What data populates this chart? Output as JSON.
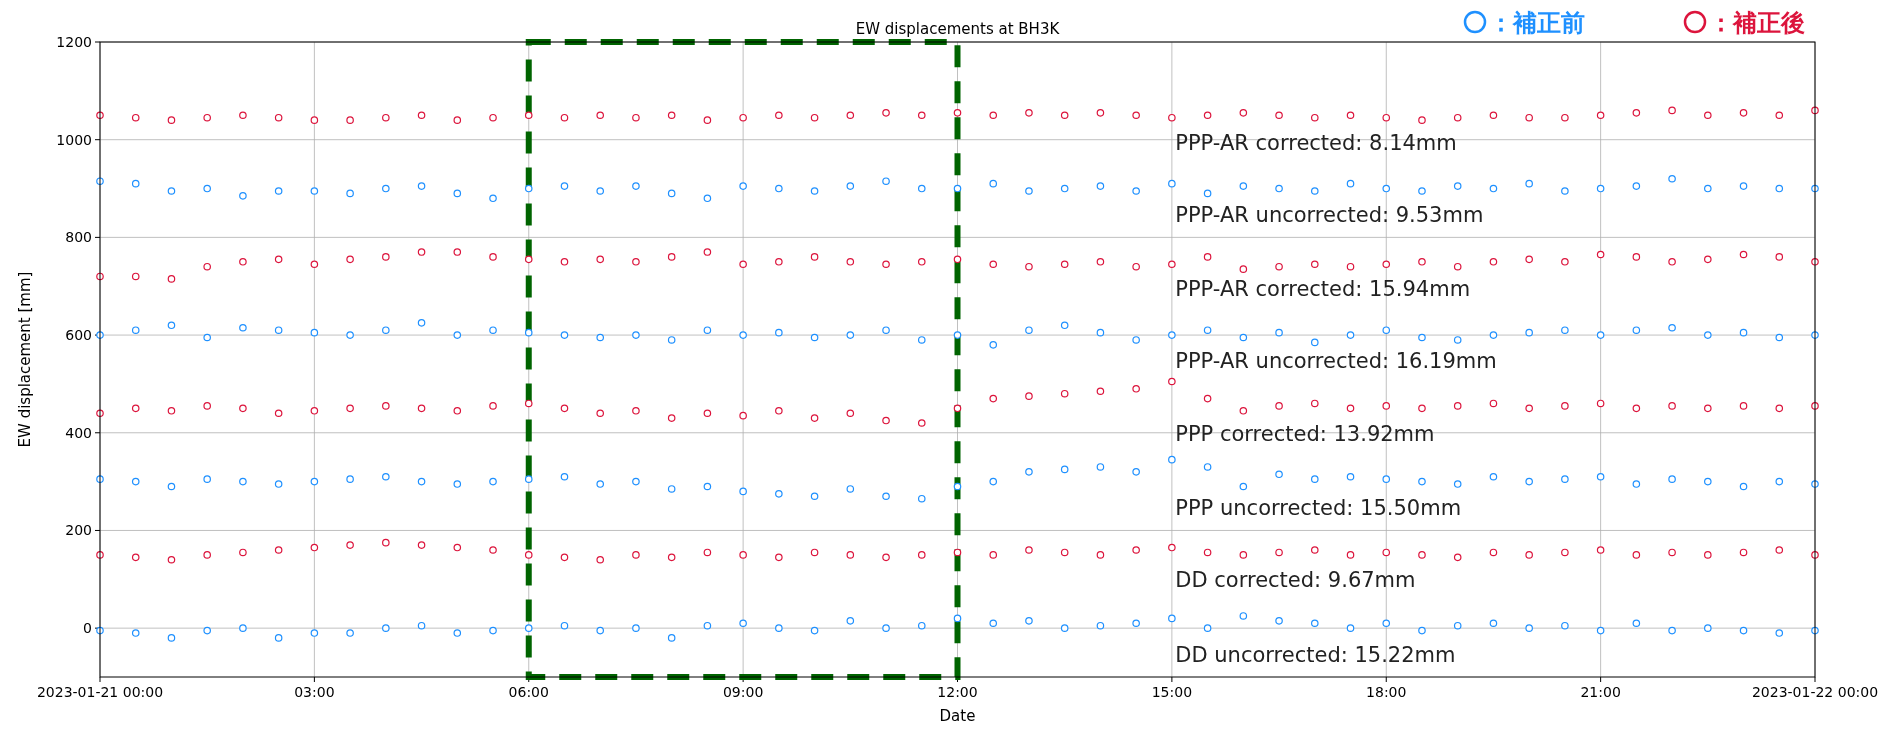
{
  "chart_data": {
    "type": "scatter",
    "title": "EW displacements at BH3K",
    "xlabel": "Date",
    "ylabel": "EW displacement [mm]",
    "marker": "circle",
    "grid": true,
    "xlim": [
      "2023-01-21T00:00",
      "2023-01-22T00:00"
    ],
    "xticks": [
      {
        "value": "2023-01-21T00:00",
        "label": "2023-01-21 00:00"
      },
      {
        "value": "2023-01-21T03:00",
        "label": "03:00"
      },
      {
        "value": "2023-01-21T06:00",
        "label": "06:00"
      },
      {
        "value": "2023-01-21T09:00",
        "label": "09:00"
      },
      {
        "value": "2023-01-21T12:00",
        "label": "12:00"
      },
      {
        "value": "2023-01-21T15:00",
        "label": "15:00"
      },
      {
        "value": "2023-01-21T18:00",
        "label": "18:00"
      },
      {
        "value": "2023-01-21T21:00",
        "label": "21:00"
      },
      {
        "value": "2023-01-22T00:00",
        "label": "2023-01-22 00:00"
      }
    ],
    "ylim": [
      -100,
      1200
    ],
    "yticks": [
      0,
      200,
      400,
      600,
      800,
      1000,
      1200
    ],
    "x": [
      "2023-01-21T00:00",
      "2023-01-21T00:30",
      "2023-01-21T01:00",
      "2023-01-21T01:30",
      "2023-01-21T02:00",
      "2023-01-21T02:30",
      "2023-01-21T03:00",
      "2023-01-21T03:30",
      "2023-01-21T04:00",
      "2023-01-21T04:30",
      "2023-01-21T05:00",
      "2023-01-21T05:30",
      "2023-01-21T06:00",
      "2023-01-21T06:30",
      "2023-01-21T07:00",
      "2023-01-21T07:30",
      "2023-01-21T08:00",
      "2023-01-21T08:30",
      "2023-01-21T09:00",
      "2023-01-21T09:30",
      "2023-01-21T10:00",
      "2023-01-21T10:30",
      "2023-01-21T11:00",
      "2023-01-21T11:30",
      "2023-01-21T12:00",
      "2023-01-21T12:30",
      "2023-01-21T13:00",
      "2023-01-21T13:30",
      "2023-01-21T14:00",
      "2023-01-21T14:30",
      "2023-01-21T15:00",
      "2023-01-21T15:30",
      "2023-01-21T16:00",
      "2023-01-21T16:30",
      "2023-01-21T17:00",
      "2023-01-21T17:30",
      "2023-01-21T18:00",
      "2023-01-21T18:30",
      "2023-01-21T19:00",
      "2023-01-21T19:30",
      "2023-01-21T20:00",
      "2023-01-21T20:30",
      "2023-01-21T21:00",
      "2023-01-21T21:30",
      "2023-01-21T22:00",
      "2023-01-21T22:30",
      "2023-01-21T23:00",
      "2023-01-21T23:30",
      "2023-01-22T00:00"
    ],
    "series": [
      {
        "name": "PPP-AR corrected: 8.14mm",
        "color": "#dc143c",
        "values": [
          1050,
          1045,
          1040,
          1045,
          1050,
          1045,
          1040,
          1040,
          1045,
          1050,
          1040,
          1045,
          1050,
          1045,
          1050,
          1045,
          1050,
          1040,
          1045,
          1050,
          1045,
          1050,
          1055,
          1050,
          1055,
          1050,
          1055,
          1050,
          1055,
          1050,
          1045,
          1050,
          1055,
          1050,
          1045,
          1050,
          1045,
          1040,
          1045,
          1050,
          1045,
          1045,
          1050,
          1055,
          1060,
          1050,
          1055,
          1050,
          1060
        ]
      },
      {
        "name": "PPP-AR uncorrected: 9.53mm",
        "color": "#1e90ff",
        "values": [
          915,
          910,
          895,
          900,
          885,
          895,
          895,
          890,
          900,
          905,
          890,
          880,
          900,
          905,
          895,
          905,
          890,
          880,
          905,
          900,
          895,
          905,
          915,
          900,
          900,
          910,
          895,
          900,
          905,
          895,
          910,
          890,
          905,
          900,
          895,
          910,
          900,
          895,
          905,
          900,
          910,
          895,
          900,
          905,
          920,
          900,
          905,
          900,
          900
        ]
      },
      {
        "name": "PPP-AR corrected: 15.94mm",
        "color": "#dc143c",
        "values": [
          720,
          720,
          715,
          740,
          750,
          755,
          745,
          755,
          760,
          770,
          770,
          760,
          755,
          750,
          755,
          750,
          760,
          770,
          745,
          750,
          760,
          750,
          745,
          750,
          755,
          745,
          740,
          745,
          750,
          740,
          745,
          760,
          735,
          740,
          745,
          740,
          745,
          750,
          740,
          750,
          755,
          750,
          765,
          760,
          750,
          755,
          765,
          760,
          750
        ]
      },
      {
        "name": "PPP-AR uncorrected: 16.19mm",
        "color": "#1e90ff",
        "values": [
          600,
          610,
          620,
          595,
          615,
          610,
          605,
          600,
          610,
          625,
          600,
          610,
          605,
          600,
          595,
          600,
          590,
          610,
          600,
          605,
          595,
          600,
          610,
          590,
          600,
          580,
          610,
          620,
          605,
          590,
          600,
          610,
          595,
          605,
          585,
          600,
          610,
          595,
          590,
          600,
          605,
          610,
          600,
          610,
          615,
          600,
          605,
          595,
          600
        ]
      },
      {
        "name": "PPP corrected: 13.92mm",
        "color": "#dc143c",
        "values": [
          440,
          450,
          445,
          455,
          450,
          440,
          445,
          450,
          455,
          450,
          445,
          455,
          460,
          450,
          440,
          445,
          430,
          440,
          435,
          445,
          430,
          440,
          425,
          420,
          450,
          470,
          475,
          480,
          485,
          490,
          505,
          470,
          445,
          455,
          460,
          450,
          455,
          450,
          455,
          460,
          450,
          455,
          460,
          450,
          455,
          450,
          455,
          450,
          455
        ]
      },
      {
        "name": "PPP uncorrected: 15.50mm",
        "color": "#1e90ff",
        "values": [
          305,
          300,
          290,
          305,
          300,
          295,
          300,
          305,
          310,
          300,
          295,
          300,
          305,
          310,
          295,
          300,
          285,
          290,
          280,
          275,
          270,
          285,
          270,
          265,
          290,
          300,
          320,
          325,
          330,
          320,
          345,
          330,
          290,
          315,
          305,
          310,
          305,
          300,
          295,
          310,
          300,
          305,
          310,
          295,
          305,
          300,
          290,
          300,
          295
        ]
      },
      {
        "name": "DD corrected: 9.67mm",
        "color": "#dc143c",
        "values": [
          150,
          145,
          140,
          150,
          155,
          160,
          165,
          170,
          175,
          170,
          165,
          160,
          150,
          145,
          140,
          150,
          145,
          155,
          150,
          145,
          155,
          150,
          145,
          150,
          155,
          150,
          160,
          155,
          150,
          160,
          165,
          155,
          150,
          155,
          160,
          150,
          155,
          150,
          145,
          155,
          150,
          155,
          160,
          150,
          155,
          150,
          155,
          160,
          150
        ]
      },
      {
        "name": "DD uncorrected: 15.22mm",
        "color": "#1e90ff",
        "values": [
          -5,
          -10,
          -20,
          -5,
          0,
          -20,
          -10,
          -10,
          0,
          5,
          -10,
          -5,
          0,
          5,
          -5,
          0,
          -20,
          5,
          10,
          0,
          -5,
          15,
          0,
          5,
          20,
          10,
          15,
          0,
          5,
          10,
          20,
          0,
          25,
          15,
          10,
          0,
          10,
          -5,
          5,
          10,
          0,
          5,
          -5,
          10,
          -5,
          0,
          -5,
          -10,
          -5
        ]
      }
    ],
    "annotations": [
      "：補正前",
      "：補正後"
    ]
  }
}
